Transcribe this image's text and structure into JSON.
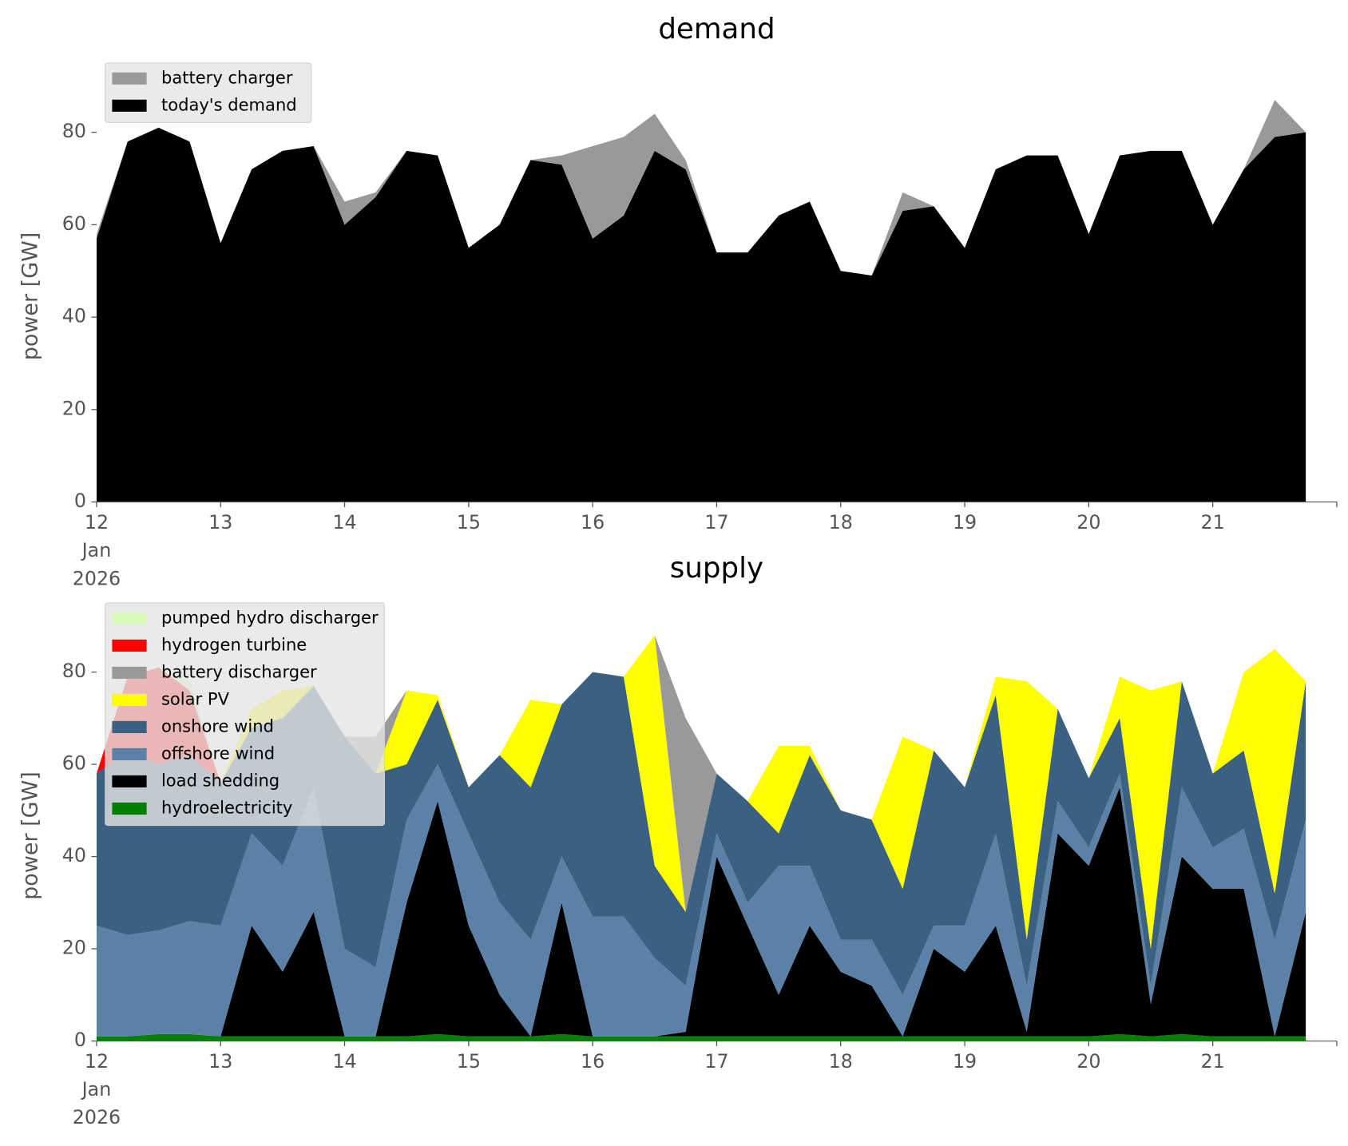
{
  "chart_data": [
    {
      "type": "area",
      "title": "demand",
      "ylabel": "power [GW]",
      "legend": "upper left",
      "x": [
        "2026-01-12T00:00",
        "2026-01-12T06:00",
        "2026-01-12T12:00",
        "2026-01-12T18:00",
        "2026-01-13T00:00",
        "2026-01-13T06:00",
        "2026-01-13T12:00",
        "2026-01-13T18:00",
        "2026-01-14T00:00",
        "2026-01-14T06:00",
        "2026-01-14T12:00",
        "2026-01-14T18:00",
        "2026-01-15T00:00",
        "2026-01-15T06:00",
        "2026-01-15T12:00",
        "2026-01-15T18:00",
        "2026-01-16T00:00",
        "2026-01-16T06:00",
        "2026-01-16T12:00",
        "2026-01-16T18:00",
        "2026-01-17T00:00",
        "2026-01-17T06:00",
        "2026-01-17T12:00",
        "2026-01-17T18:00",
        "2026-01-18T00:00",
        "2026-01-18T06:00",
        "2026-01-18T12:00",
        "2026-01-18T18:00",
        "2026-01-19T00:00",
        "2026-01-19T06:00",
        "2026-01-19T12:00",
        "2026-01-19T18:00",
        "2026-01-20T00:00",
        "2026-01-20T06:00",
        "2026-01-20T12:00",
        "2026-01-20T18:00",
        "2026-01-21T00:00",
        "2026-01-21T06:00",
        "2026-01-21T12:00",
        "2026-01-21T18:00"
      ],
      "series": [
        {
          "name": "today's demand",
          "color": "#000000",
          "values": [
            57,
            78,
            81,
            78,
            56,
            72,
            76,
            77,
            60,
            66,
            76,
            75,
            55,
            60,
            74,
            73,
            57,
            62,
            76,
            72,
            54,
            54,
            62,
            65,
            50,
            49,
            63,
            64,
            55,
            72,
            75,
            75,
            58,
            75,
            76,
            76,
            60,
            72,
            79,
            80
          ]
        },
        {
          "name": "battery charger",
          "color": "#999999",
          "values": [
            1,
            0,
            0,
            0,
            0,
            0,
            0,
            0,
            5,
            1,
            0,
            0,
            0,
            0,
            0,
            2,
            20,
            17,
            8,
            2,
            0,
            0,
            0,
            0,
            0,
            0,
            4,
            0,
            0,
            0,
            0,
            0,
            0,
            0,
            0,
            0,
            0,
            0,
            8,
            0
          ]
        }
      ],
      "xlim": [
        "2026-01-12T00:00",
        "2026-01-22T00:00"
      ],
      "xticks": [
        {
          "value": "2026-01-12",
          "label": [
            "12",
            "Jan",
            "2026"
          ]
        },
        {
          "value": "2026-01-13",
          "label": "13"
        },
        {
          "value": "2026-01-14",
          "label": "14"
        },
        {
          "value": "2026-01-15",
          "label": "15"
        },
        {
          "value": "2026-01-16",
          "label": "16"
        },
        {
          "value": "2026-01-17",
          "label": "17"
        },
        {
          "value": "2026-01-18",
          "label": "18"
        },
        {
          "value": "2026-01-19",
          "label": "19"
        },
        {
          "value": "2026-01-20",
          "label": "20"
        },
        {
          "value": "2026-01-21",
          "label": "21"
        }
      ],
      "ylim": [
        0,
        96.5
      ],
      "yticks": [
        0,
        20,
        40,
        60,
        80
      ]
    },
    {
      "type": "area",
      "title": "supply",
      "ylabel": "power [GW]",
      "legend": "upper left",
      "x": [
        "2026-01-12T00:00",
        "2026-01-12T06:00",
        "2026-01-12T12:00",
        "2026-01-12T18:00",
        "2026-01-13T00:00",
        "2026-01-13T06:00",
        "2026-01-13T12:00",
        "2026-01-13T18:00",
        "2026-01-14T00:00",
        "2026-01-14T06:00",
        "2026-01-14T12:00",
        "2026-01-14T18:00",
        "2026-01-15T00:00",
        "2026-01-15T06:00",
        "2026-01-15T12:00",
        "2026-01-15T18:00",
        "2026-01-16T00:00",
        "2026-01-16T06:00",
        "2026-01-16T12:00",
        "2026-01-16T18:00",
        "2026-01-17T00:00",
        "2026-01-17T06:00",
        "2026-01-17T12:00",
        "2026-01-17T18:00",
        "2026-01-18T00:00",
        "2026-01-18T06:00",
        "2026-01-18T12:00",
        "2026-01-18T18:00",
        "2026-01-19T00:00",
        "2026-01-19T06:00",
        "2026-01-19T12:00",
        "2026-01-19T18:00",
        "2026-01-20T00:00",
        "2026-01-20T06:00",
        "2026-01-20T12:00",
        "2026-01-20T18:00",
        "2026-01-21T00:00",
        "2026-01-21T06:00",
        "2026-01-21T12:00",
        "2026-01-21T18:00"
      ],
      "series": [
        {
          "name": "hydroelectricity",
          "color": "#008000",
          "values": [
            1,
            1,
            1.5,
            1.5,
            1,
            1,
            1,
            1,
            1,
            1,
            1,
            1.5,
            1,
            1,
            1,
            1.5,
            1,
            1,
            1,
            1,
            1,
            1,
            1,
            1,
            1,
            1,
            1,
            1,
            1,
            1,
            1,
            1,
            1,
            1.5,
            1,
            1.5,
            1,
            1,
            1,
            1
          ]
        },
        {
          "name": "load shedding",
          "color": "#000000",
          "values": [
            0,
            0,
            0,
            0,
            0,
            24,
            14,
            27,
            0,
            0,
            29,
            50.5,
            24,
            9,
            0,
            28.5,
            0,
            0,
            0,
            1,
            39,
            24,
            9,
            24,
            14,
            11,
            0,
            19,
            14,
            24,
            1,
            44,
            37,
            53.5,
            7,
            38.5,
            32,
            32,
            0,
            27
          ]
        },
        {
          "name": "offshore wind",
          "color": "#5b82a6",
          "values": [
            24,
            22,
            22.5,
            24.5,
            24,
            20,
            23,
            27,
            19,
            15,
            18,
            8,
            20,
            20,
            21,
            10,
            26,
            26,
            17,
            10,
            5,
            5,
            28,
            13,
            7,
            10,
            9,
            5,
            10,
            20,
            10,
            7,
            4,
            3,
            4,
            15,
            9,
            13,
            21,
            20
          ]
        },
        {
          "name": "onshore wind",
          "color": "#3a6082",
          "values": [
            33,
            40,
            36,
            36,
            31,
            23,
            32,
            22,
            46,
            42,
            12,
            14,
            10,
            32,
            33,
            33,
            53,
            52,
            20,
            16,
            13,
            22,
            7,
            24,
            28,
            26,
            23,
            38,
            30,
            30,
            10,
            20,
            15,
            12,
            8,
            23,
            16,
            17,
            10,
            30
          ]
        },
        {
          "name": "solar PV",
          "color": "#ffff00",
          "values": [
            0,
            0,
            0,
            0,
            0,
            4,
            6,
            0,
            0,
            0,
            16,
            1,
            0,
            0,
            19,
            0,
            0,
            0,
            50,
            0,
            0,
            0,
            19,
            2,
            0,
            0,
            33,
            0,
            0,
            4,
            56,
            0,
            0,
            9,
            56,
            0,
            0,
            17,
            53,
            0
          ]
        },
        {
          "name": "battery discharger",
          "color": "#999999",
          "values": [
            0,
            0,
            0,
            0,
            0,
            0,
            0,
            0,
            0,
            8,
            0,
            0,
            0,
            0,
            0,
            0,
            0,
            0,
            0,
            42,
            0,
            0,
            0,
            0,
            0,
            0,
            0,
            0,
            0,
            0,
            0,
            0,
            0,
            0,
            0,
            0,
            0,
            0,
            0,
            0
          ]
        },
        {
          "name": "hydrogen turbine",
          "color": "#ff0000",
          "values": [
            0,
            16,
            21,
            14,
            0,
            0,
            0,
            0,
            0,
            0,
            0,
            0,
            0,
            0,
            0,
            0,
            0,
            0,
            0,
            0,
            0,
            0,
            0,
            0,
            0,
            0,
            0,
            0,
            0,
            0,
            0,
            0,
            0,
            0,
            0,
            0,
            0,
            0,
            0,
            0
          ]
        },
        {
          "name": "pumped hydro discharger",
          "color": "#d8f9b8",
          "values": [
            0,
            0,
            0,
            2,
            0,
            0,
            0,
            0,
            0,
            0,
            0,
            0,
            0,
            0,
            0,
            0,
            0,
            0,
            0,
            0,
            0,
            0,
            0,
            0,
            0,
            0,
            0,
            0,
            0,
            0,
            0,
            0,
            0,
            0,
            0,
            0,
            0,
            0,
            0,
            0
          ]
        }
      ],
      "xlim": [
        "2026-01-12T00:00",
        "2026-01-22T00:00"
      ],
      "xticks": [
        {
          "value": "2026-01-12",
          "label": [
            "12",
            "Jan",
            "2026"
          ]
        },
        {
          "value": "2026-01-13",
          "label": "13"
        },
        {
          "value": "2026-01-14",
          "label": "14"
        },
        {
          "value": "2026-01-15",
          "label": "15"
        },
        {
          "value": "2026-01-16",
          "label": "16"
        },
        {
          "value": "2026-01-17",
          "label": "17"
        },
        {
          "value": "2026-01-18",
          "label": "18"
        },
        {
          "value": "2026-01-19",
          "label": "19"
        },
        {
          "value": "2026-01-20",
          "label": "20"
        },
        {
          "value": "2026-01-21",
          "label": "21"
        }
      ],
      "ylim": [
        0,
        96.5
      ],
      "yticks": [
        0,
        20,
        40,
        60,
        80
      ]
    }
  ]
}
